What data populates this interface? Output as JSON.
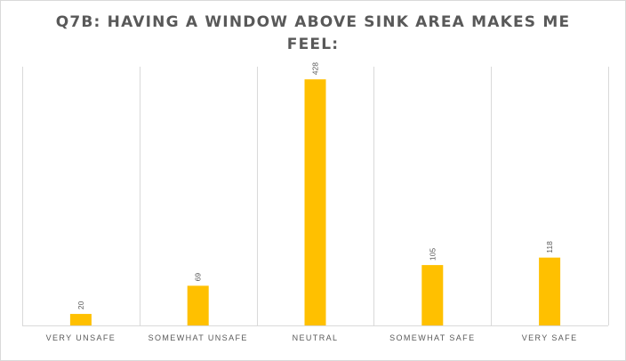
{
  "chart_data": {
    "type": "bar",
    "title": "Q7B: HAVING A WINDOW ABOVE SINK AREA MAKES ME FEEL:",
    "categories": [
      "VERY UNSAFE",
      "SOMEWHAT UNSAFE",
      "NEUTRAL",
      "SOMEWHAT SAFE",
      "VERY SAFE"
    ],
    "values": [
      20,
      69,
      428,
      105,
      118
    ],
    "data_labels": [
      "20",
      "69",
      "428",
      "105",
      "118"
    ],
    "xlabel": "",
    "ylabel": "",
    "ylim": [
      0,
      450
    ],
    "grid": "vertical category separators",
    "legend": "none",
    "bar_color": "#FFC000",
    "gridline_color": "#D9D9D9",
    "text_color": "#595959"
  }
}
